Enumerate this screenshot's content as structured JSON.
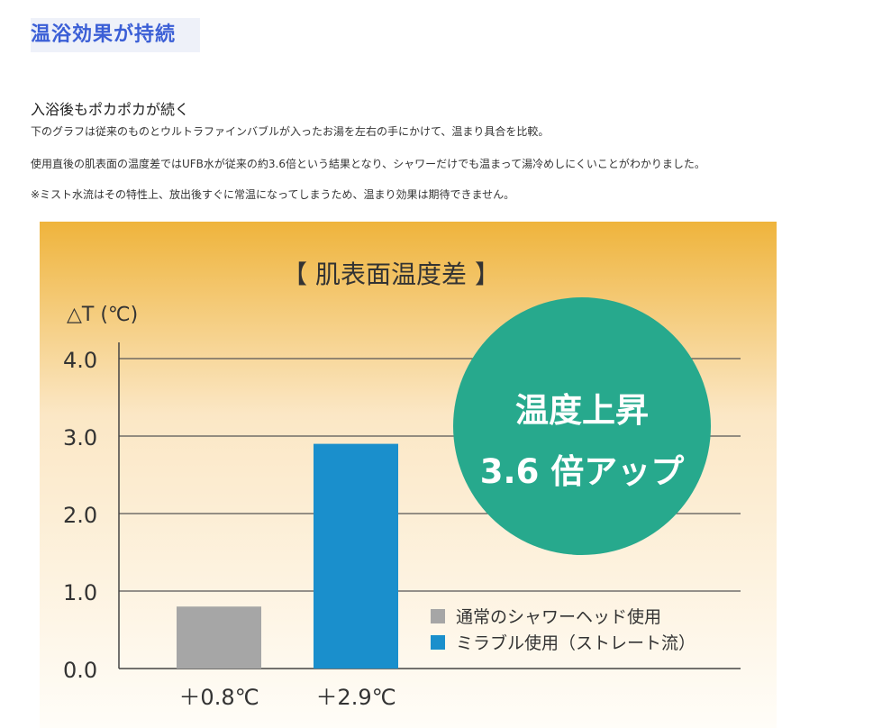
{
  "page": {
    "heading": "温浴効果が持続",
    "subheading": "入浴後もポカポカが続く",
    "paragraphs": [
      "下のグラフは従来のものとウルトラファインバブルが入ったお湯を左右の手にかけて、温まり具合を比較。",
      "使用直後の肌表面の温度差ではUFB水が従来の約3.6倍という結果となり、シャワーだけでも温まって湯冷めしにくいことがわかりました。",
      "※ミスト水流はその特性上、放出後すぐに常温になってしまうため、温まり効果は期待できません。"
    ]
  },
  "colors": {
    "panel_top": "#efb43c",
    "panel_bottom": "#fffdf8",
    "bar_normal": "#a6a6a6",
    "bar_mirable": "#1a8fcc",
    "badge": "#27a98d",
    "heading_text": "#3b5fd6"
  },
  "chart_data": {
    "type": "bar",
    "title": "【 肌表面温度差 】",
    "ylabel": "△T (℃)",
    "ylim": [
      0,
      4
    ],
    "yticks": [
      "0.0",
      "1.0",
      "2.0",
      "3.0",
      "4.0"
    ],
    "grid": true,
    "legend_position": "bottom-right",
    "categories": [
      "＋0.8℃",
      "＋2.9℃"
    ],
    "series": [
      {
        "name": "通常のシャワーヘッド使用",
        "values": [
          0.8,
          null
        ],
        "color": "#a6a6a6"
      },
      {
        "name": "ミラブル使用（ストレート流）",
        "values": [
          null,
          2.9
        ],
        "color": "#1a8fcc"
      }
    ],
    "annotation": {
      "line1": "温度上昇",
      "line2": "3.6 倍アップ"
    }
  }
}
